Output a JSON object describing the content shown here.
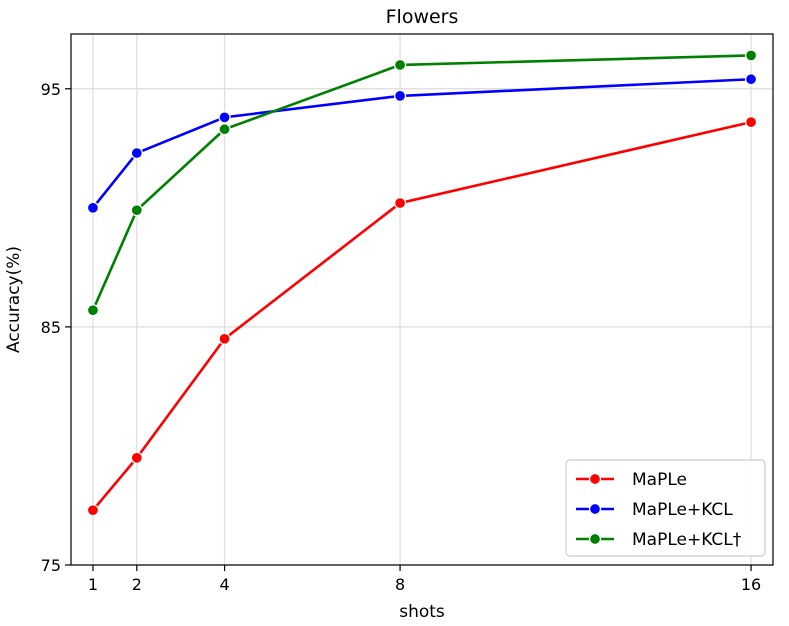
{
  "chart_data": {
    "type": "line",
    "title": "Flowers",
    "xlabel": "shots",
    "ylabel": "Accuracy(%)",
    "x": [
      1,
      2,
      4,
      8,
      16
    ],
    "xticks": [
      "1",
      "2",
      "4",
      "8",
      "16"
    ],
    "yticks": [
      "75",
      "85",
      "95"
    ],
    "ytick_values": [
      75,
      85,
      95
    ],
    "xlim": [
      0.5,
      16.5
    ],
    "ylim": [
      75,
      97.3
    ],
    "grid": true,
    "legend_position": "bottom-right",
    "series": [
      {
        "name": "MaPLe",
        "color": "#ff0000",
        "values": [
          77.3,
          79.5,
          84.5,
          90.2,
          93.6
        ]
      },
      {
        "name": "MaPLe+KCL",
        "color": "#0000ff",
        "values": [
          90.0,
          92.3,
          93.8,
          94.7,
          95.4
        ]
      },
      {
        "name": "MaPLe+KCL†",
        "color": "#008000",
        "values": [
          85.7,
          89.9,
          93.3,
          96.0,
          96.4
        ]
      }
    ]
  }
}
